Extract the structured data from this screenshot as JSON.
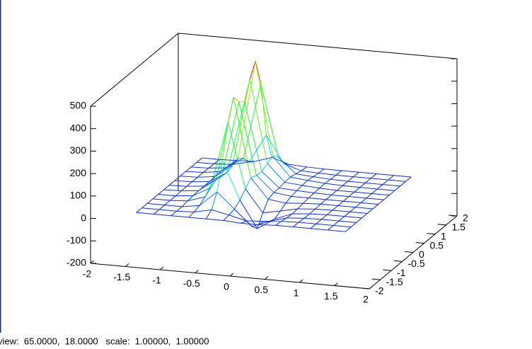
{
  "chart_data": {
    "type": "surface",
    "status": "view:  65.0000,  18.0000   scale:  1.00000,  1.00000",
    "xlim": [
      -2,
      2
    ],
    "xticks": [
      -2,
      -1.5,
      -1,
      -0.5,
      0,
      0.5,
      1,
      1.5,
      2
    ],
    "ylim": [
      -2,
      2
    ],
    "yticks": [
      -2,
      -1.5,
      -1,
      -0.5,
      0,
      0.5,
      1,
      1.5,
      2
    ],
    "zlim": [
      -200,
      500
    ],
    "zticks": [
      -200,
      -100,
      0,
      100,
      200,
      300,
      400,
      500
    ],
    "x": [
      -1.5,
      -1.25,
      -1,
      -0.75,
      -0.5,
      -0.25,
      0,
      0.25,
      0.5,
      0.75,
      1,
      1.25,
      1.5
    ],
    "y": [
      -1.5,
      -1.25,
      -1,
      -0.75,
      -0.5,
      -0.25,
      0,
      0.25,
      0.5,
      0.75,
      1,
      1.25,
      1.5
    ],
    "z": [
      [
        0,
        0,
        0,
        0,
        0,
        0,
        -5,
        -5,
        0,
        0,
        0,
        0,
        0
      ],
      [
        0,
        0,
        0,
        3,
        20,
        4,
        -15,
        -10,
        -3,
        0,
        0,
        0,
        0
      ],
      [
        0,
        0,
        0,
        12,
        80,
        10,
        -60,
        -30,
        -8,
        -2,
        0,
        0,
        0
      ],
      [
        0,
        0,
        5,
        30,
        200,
        30,
        -90,
        -40,
        -10,
        -3,
        0,
        0,
        0
      ],
      [
        0,
        0,
        8,
        50,
        350,
        60,
        -40,
        -25,
        -8,
        -2,
        0,
        0,
        0
      ],
      [
        0,
        2,
        10,
        66,
        440,
        88,
        0,
        -10,
        -4,
        0,
        0,
        0,
        0
      ],
      [
        0,
        2,
        10,
        60,
        400,
        80,
        10,
        0,
        0,
        0,
        0,
        0,
        0
      ],
      [
        0,
        2,
        10,
        57,
        380,
        76,
        10,
        5,
        2,
        0,
        0,
        0,
        0
      ],
      [
        0,
        2,
        12,
        69,
        460,
        92,
        15,
        8,
        3,
        0,
        0,
        0,
        0
      ],
      [
        0,
        3,
        14,
        78,
        520,
        104,
        18,
        10,
        4,
        1,
        0,
        0,
        0
      ],
      [
        0,
        2,
        10,
        60,
        400,
        80,
        12,
        6,
        2,
        0,
        0,
        0,
        0
      ],
      [
        0,
        1,
        5,
        22,
        150,
        30,
        5,
        2,
        0,
        0,
        0,
        0,
        0
      ],
      [
        0,
        0,
        2,
        5,
        30,
        6,
        2,
        0,
        0,
        0,
        0,
        0,
        0
      ]
    ]
  }
}
